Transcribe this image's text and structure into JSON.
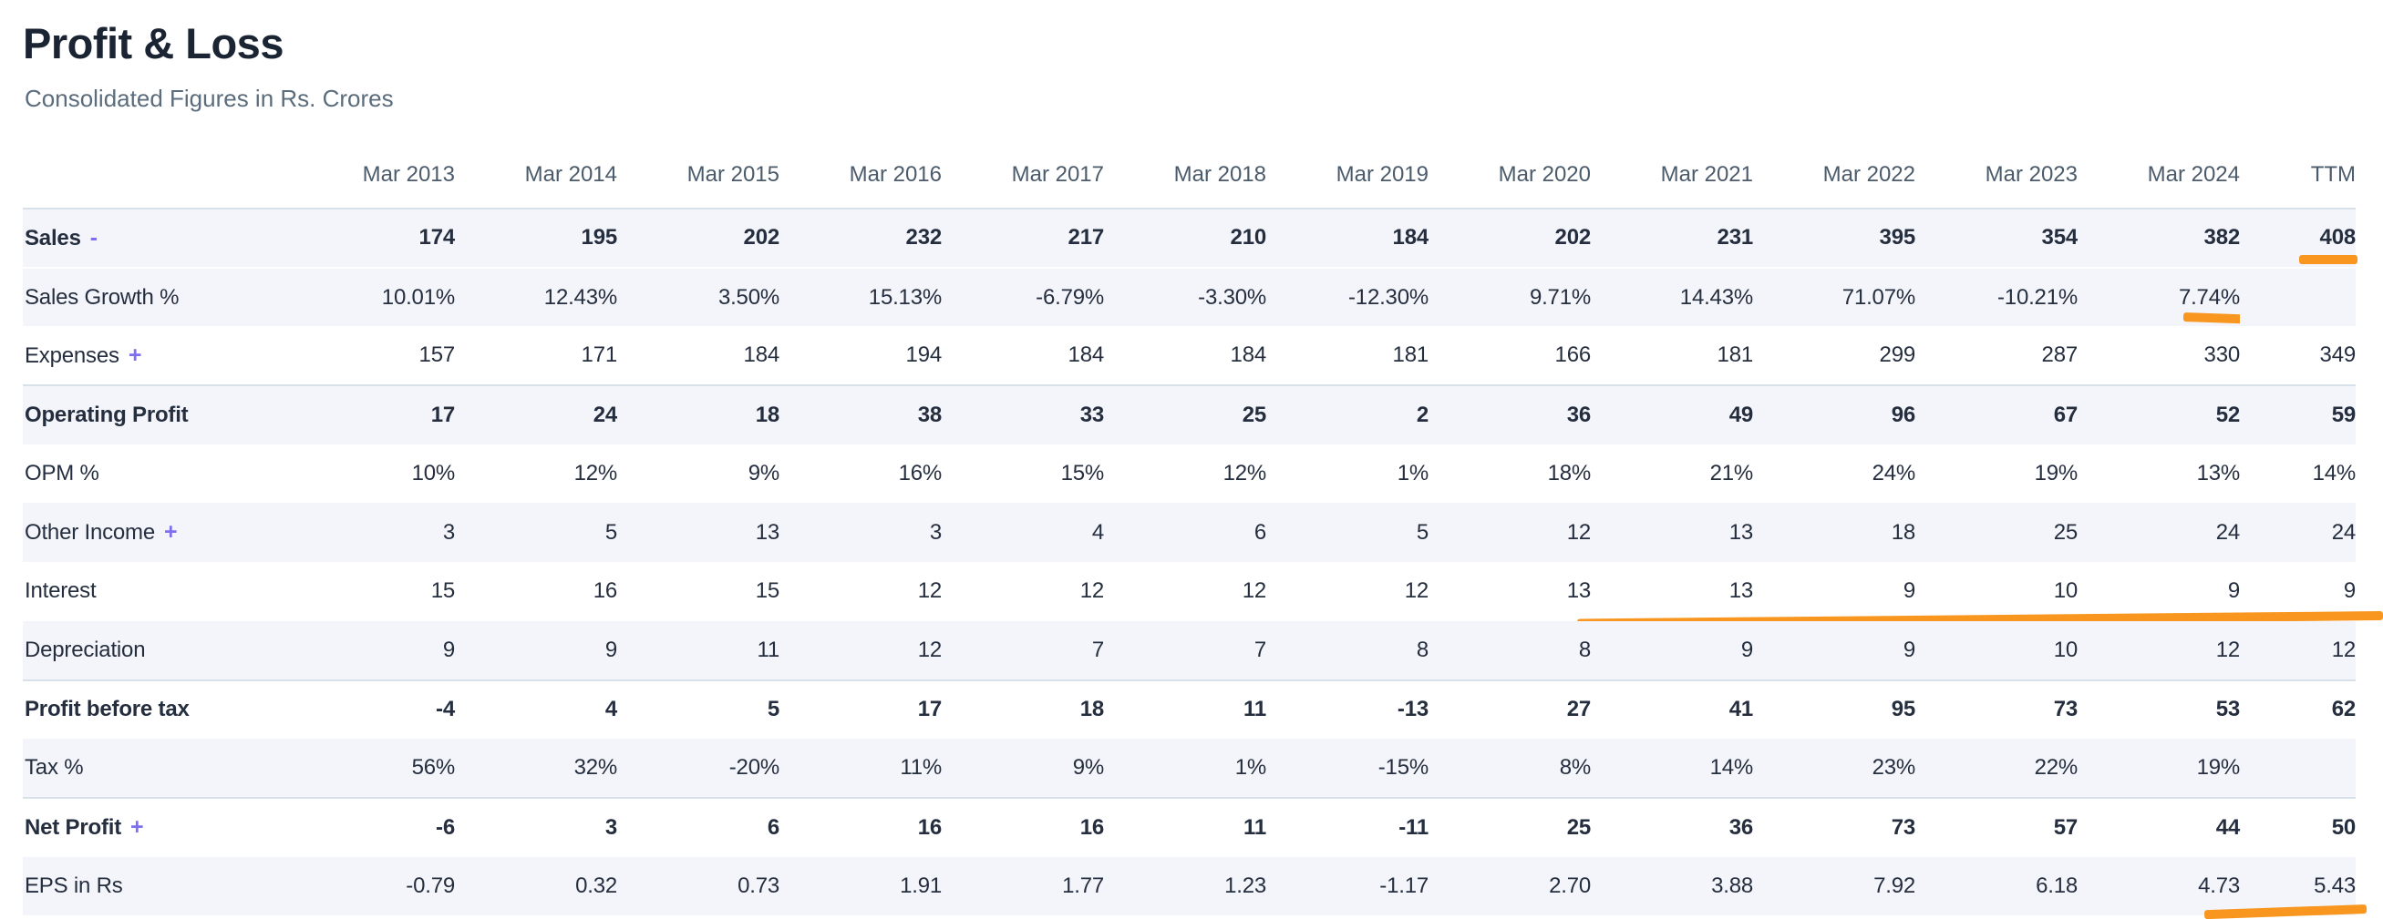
{
  "page": {
    "title": "Profit & Loss",
    "subtitle": "Consolidated Figures in Rs. Crores"
  },
  "colors": {
    "accent_purple": "#7e6ff0",
    "annotation_orange": "#f8961f",
    "stripe_background": "#f4f5fa",
    "strong_border": "#d8e1ea",
    "heading_text": "#1b2433",
    "subtitle_text": "#5b6c7c",
    "header_text": "#4b5b6b",
    "body_text": "#252e3f"
  },
  "table": {
    "columns": [
      "Mar 2013",
      "Mar 2014",
      "Mar 2015",
      "Mar 2016",
      "Mar 2017",
      "Mar 2018",
      "Mar 2019",
      "Mar 2020",
      "Mar 2021",
      "Mar 2022",
      "Mar 2023",
      "Mar 2024",
      "TTM"
    ],
    "rows": [
      {
        "label": "Sales",
        "toggle": "-",
        "bold": true,
        "stripe": true,
        "values": [
          "174",
          "195",
          "202",
          "232",
          "217",
          "210",
          "184",
          "202",
          "231",
          "395",
          "354",
          "382",
          "408"
        ]
      },
      {
        "label": "Sales Growth %",
        "stripe": true,
        "white_sep": true,
        "values": [
          "10.01%",
          "12.43%",
          "3.50%",
          "15.13%",
          "-6.79%",
          "-3.30%",
          "-12.30%",
          "9.71%",
          "14.43%",
          "71.07%",
          "-10.21%",
          "7.74%",
          ""
        ]
      },
      {
        "label": "Expenses",
        "toggle": "+",
        "values": [
          "157",
          "171",
          "184",
          "194",
          "184",
          "184",
          "181",
          "166",
          "181",
          "299",
          "287",
          "330",
          "349"
        ]
      },
      {
        "label": "Operating Profit",
        "bold": true,
        "stripe": true,
        "strong_border": true,
        "values": [
          "17",
          "24",
          "18",
          "38",
          "33",
          "25",
          "2",
          "36",
          "49",
          "96",
          "67",
          "52",
          "59"
        ]
      },
      {
        "label": "OPM %",
        "values": [
          "10%",
          "12%",
          "9%",
          "16%",
          "15%",
          "12%",
          "1%",
          "18%",
          "21%",
          "24%",
          "19%",
          "13%",
          "14%"
        ]
      },
      {
        "label": "Other Income",
        "toggle": "+",
        "stripe": true,
        "values": [
          "3",
          "5",
          "13",
          "3",
          "4",
          "6",
          "5",
          "12",
          "13",
          "18",
          "25",
          "24",
          "24"
        ]
      },
      {
        "label": "Interest",
        "values": [
          "15",
          "16",
          "15",
          "12",
          "12",
          "12",
          "12",
          "13",
          "13",
          "9",
          "10",
          "9",
          "9"
        ]
      },
      {
        "label": "Depreciation",
        "stripe": true,
        "values": [
          "9",
          "9",
          "11",
          "12",
          "7",
          "7",
          "8",
          "8",
          "9",
          "9",
          "10",
          "12",
          "12"
        ]
      },
      {
        "label": "Profit before tax",
        "bold": true,
        "strong_border": true,
        "values": [
          "-4",
          "4",
          "5",
          "17",
          "18",
          "11",
          "-13",
          "27",
          "41",
          "95",
          "73",
          "53",
          "62"
        ]
      },
      {
        "label": "Tax %",
        "stripe": true,
        "values": [
          "56%",
          "32%",
          "-20%",
          "11%",
          "9%",
          "1%",
          "-15%",
          "8%",
          "14%",
          "23%",
          "22%",
          "19%",
          ""
        ]
      },
      {
        "label": "Net Profit",
        "toggle": "+",
        "bold": true,
        "strong_border": true,
        "values": [
          "-6",
          "3",
          "6",
          "16",
          "16",
          "11",
          "-11",
          "25",
          "36",
          "73",
          "57",
          "44",
          "50"
        ]
      },
      {
        "label": "EPS in Rs",
        "stripe": true,
        "values": [
          "-0.79",
          "0.32",
          "0.73",
          "1.91",
          "1.77",
          "1.23",
          "-1.17",
          "2.70",
          "3.88",
          "7.92",
          "6.18",
          "4.73",
          "5.43"
        ]
      }
    ]
  },
  "annotations": [
    {
      "row": 0,
      "col": 12,
      "css": "m-sales",
      "note": "orange underline under Sales TTM 408"
    },
    {
      "row": 1,
      "col": 11,
      "css": "m-growth",
      "note": "orange underline under Sales Growth 7.74% (Mar 2024)"
    },
    {
      "row": 6,
      "col": 12,
      "css": "m-interest",
      "note": "orange line under Interest values Mar 2020 through TTM"
    },
    {
      "row": 11,
      "col": 12,
      "css": "m-eps",
      "note": "orange underline under EPS 4.73 and 5.43"
    }
  ]
}
